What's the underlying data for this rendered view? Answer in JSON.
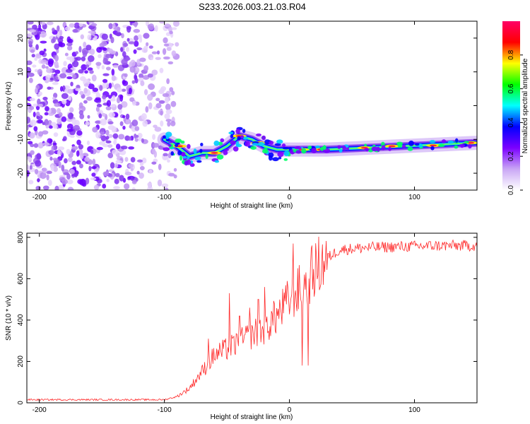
{
  "title": "S233.2026.003.21.03.R04",
  "chart_data": [
    {
      "type": "heatmap",
      "xlabel": "Height of straight line (km)",
      "ylabel": "Frequency (Hz)",
      "xlim": [
        -210,
        150
      ],
      "ylim": [
        -25,
        25
      ],
      "xticks": [
        "-200",
        "-100",
        "0",
        "100"
      ],
      "yticks": [
        "20",
        "10",
        "0",
        "-10",
        "-20"
      ],
      "colorbar": {
        "label": "Normalized spectral amplitude",
        "range": [
          0.0,
          1.0
        ],
        "ticks": [
          "0.0",
          "0.2",
          "0.4",
          "0.6",
          "0.8"
        ],
        "colors": [
          "#ffffff",
          "#c9a6f5",
          "#7b00ff",
          "#0000ff",
          "#00ffff",
          "#00ff00",
          "#ffff00",
          "#ff0000",
          "#ff0066"
        ]
      },
      "ridge": [
        {
          "x": -100,
          "y": -10
        },
        {
          "x": -90,
          "y": -12
        },
        {
          "x": -80,
          "y": -15
        },
        {
          "x": -70,
          "y": -14
        },
        {
          "x": -60,
          "y": -14
        },
        {
          "x": -50,
          "y": -12
        },
        {
          "x": -40,
          "y": -9
        },
        {
          "x": -30,
          "y": -10
        },
        {
          "x": -20,
          "y": -12
        },
        {
          "x": -10,
          "y": -13
        },
        {
          "x": 0,
          "y": -13
        },
        {
          "x": 10,
          "y": -13
        },
        {
          "x": 30,
          "y": -13
        },
        {
          "x": 60,
          "y": -12.5
        },
        {
          "x": 90,
          "y": -12
        },
        {
          "x": 120,
          "y": -11.5
        },
        {
          "x": 150,
          "y": -11
        }
      ],
      "noise_region": {
        "x": [
          -210,
          -90
        ],
        "y": [
          -25,
          25
        ]
      }
    },
    {
      "type": "line",
      "xlabel": "Height of straight line (km)",
      "ylabel": "SNR (10 * v/v)",
      "xlim": [
        -210,
        150
      ],
      "ylim": [
        0,
        820
      ],
      "xticks": [
        "-200",
        "-100",
        "0",
        "100"
      ],
      "yticks": [
        "800",
        "600",
        "400",
        "200",
        "0"
      ],
      "color": "#ff2a2a",
      "series": [
        {
          "points": [
            [
              -210,
              15
            ],
            [
              -180,
              15
            ],
            [
              -150,
              15
            ],
            [
              -120,
              15
            ],
            [
              -100,
              15
            ],
            [
              -90,
              30
            ],
            [
              -80,
              70
            ],
            [
              -70,
              150
            ],
            [
              -60,
              230
            ],
            [
              -50,
              260
            ],
            [
              -40,
              290
            ],
            [
              -30,
              330
            ],
            [
              -20,
              360
            ],
            [
              -10,
              420
            ],
            [
              0,
              500
            ],
            [
              10,
              560
            ],
            [
              20,
              640
            ],
            [
              30,
              700
            ],
            [
              40,
              740
            ],
            [
              60,
              750
            ],
            [
              90,
              755
            ],
            [
              120,
              760
            ],
            [
              150,
              760
            ]
          ]
        }
      ],
      "spikes": [
        [
          -65,
          310
        ],
        [
          -48,
          530
        ],
        [
          -40,
          420
        ],
        [
          -32,
          460
        ],
        [
          -25,
          500
        ],
        [
          -20,
          560
        ],
        [
          -12,
          480
        ],
        [
          3,
          770
        ],
        [
          10,
          180
        ],
        [
          12,
          620
        ],
        [
          15,
          180
        ]
      ]
    }
  ]
}
